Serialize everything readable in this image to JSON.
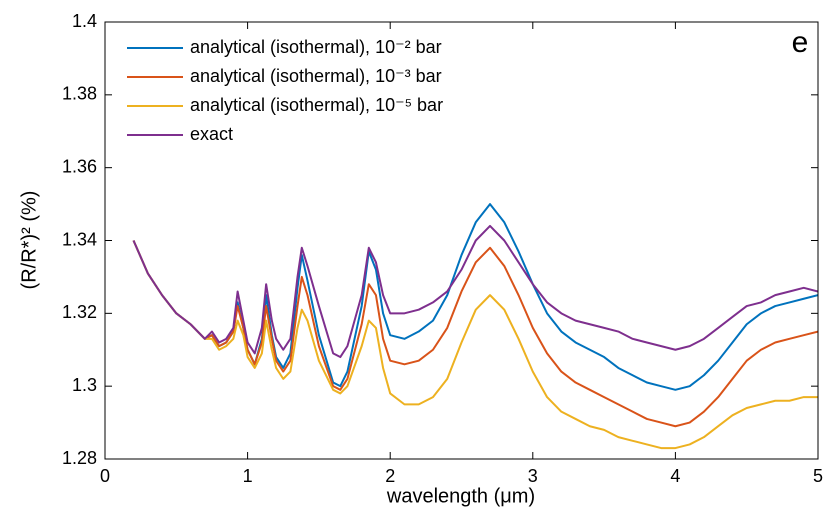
{
  "chart_data": {
    "type": "line",
    "x_label": "wavelength (μm)",
    "y_label": "(R/R*)² (%)",
    "annotation": "e",
    "xlim": [
      0,
      5
    ],
    "xticks": [
      0,
      1,
      2,
      3,
      4,
      5
    ],
    "ylim": [
      1.28,
      1.4
    ],
    "yticks": [
      1.28,
      1.3,
      1.32,
      1.34,
      1.36,
      1.38,
      1.4
    ],
    "legend": "upper left",
    "grid": false,
    "x": [
      0.2,
      0.3,
      0.4,
      0.5,
      0.6,
      0.7,
      0.75,
      0.8,
      0.85,
      0.9,
      0.93,
      0.97,
      1.0,
      1.05,
      1.1,
      1.13,
      1.17,
      1.2,
      1.25,
      1.3,
      1.35,
      1.38,
      1.42,
      1.5,
      1.6,
      1.65,
      1.7,
      1.8,
      1.85,
      1.9,
      1.95,
      2.0,
      2.1,
      2.2,
      2.3,
      2.4,
      2.5,
      2.6,
      2.7,
      2.8,
      2.9,
      3.0,
      3.1,
      3.2,
      3.3,
      3.4,
      3.5,
      3.6,
      3.7,
      3.8,
      3.9,
      4.0,
      4.1,
      4.2,
      4.3,
      4.4,
      4.5,
      4.6,
      4.7,
      4.8,
      4.9,
      5.0
    ],
    "series": [
      {
        "name": "analytical (isothermal), 10⁻² bar",
        "color": "#0072bd",
        "values": [
          1.34,
          1.331,
          1.325,
          1.32,
          1.317,
          1.313,
          1.314,
          1.311,
          1.312,
          1.315,
          1.323,
          1.316,
          1.31,
          1.306,
          1.313,
          1.325,
          1.314,
          1.308,
          1.305,
          1.309,
          1.327,
          1.336,
          1.329,
          1.314,
          1.301,
          1.3,
          1.304,
          1.322,
          1.337,
          1.332,
          1.32,
          1.314,
          1.313,
          1.315,
          1.318,
          1.325,
          1.336,
          1.345,
          1.35,
          1.345,
          1.337,
          1.328,
          1.32,
          1.315,
          1.312,
          1.31,
          1.308,
          1.305,
          1.303,
          1.301,
          1.3,
          1.299,
          1.3,
          1.303,
          1.307,
          1.312,
          1.317,
          1.32,
          1.322,
          1.323,
          1.324,
          1.325
        ]
      },
      {
        "name": "analytical (isothermal), 10⁻³ bar",
        "color": "#d95319",
        "values": [
          1.34,
          1.331,
          1.325,
          1.32,
          1.317,
          1.313,
          1.314,
          1.311,
          1.312,
          1.315,
          1.322,
          1.316,
          1.31,
          1.306,
          1.312,
          1.322,
          1.313,
          1.307,
          1.304,
          1.307,
          1.322,
          1.33,
          1.325,
          1.311,
          1.3,
          1.299,
          1.302,
          1.317,
          1.328,
          1.325,
          1.313,
          1.307,
          1.306,
          1.307,
          1.31,
          1.316,
          1.326,
          1.334,
          1.338,
          1.333,
          1.325,
          1.316,
          1.309,
          1.304,
          1.301,
          1.299,
          1.297,
          1.295,
          1.293,
          1.291,
          1.29,
          1.289,
          1.29,
          1.293,
          1.297,
          1.302,
          1.307,
          1.31,
          1.312,
          1.313,
          1.314,
          1.315
        ]
      },
      {
        "name": "analytical (isothermal), 10⁻⁵ bar",
        "color": "#edb120",
        "values": [
          1.34,
          1.331,
          1.325,
          1.32,
          1.317,
          1.313,
          1.313,
          1.31,
          1.311,
          1.313,
          1.318,
          1.314,
          1.308,
          1.305,
          1.309,
          1.318,
          1.31,
          1.305,
          1.302,
          1.304,
          1.316,
          1.321,
          1.318,
          1.307,
          1.299,
          1.298,
          1.3,
          1.311,
          1.318,
          1.316,
          1.305,
          1.298,
          1.295,
          1.295,
          1.297,
          1.302,
          1.312,
          1.321,
          1.325,
          1.321,
          1.313,
          1.304,
          1.297,
          1.293,
          1.291,
          1.289,
          1.288,
          1.286,
          1.285,
          1.284,
          1.283,
          1.283,
          1.284,
          1.286,
          1.289,
          1.292,
          1.294,
          1.295,
          1.296,
          1.296,
          1.297,
          1.297
        ]
      },
      {
        "name": "exact",
        "color": "#7e2f8e",
        "values": [
          1.34,
          1.331,
          1.325,
          1.32,
          1.317,
          1.313,
          1.315,
          1.312,
          1.313,
          1.316,
          1.326,
          1.318,
          1.312,
          1.309,
          1.316,
          1.328,
          1.318,
          1.313,
          1.31,
          1.313,
          1.33,
          1.338,
          1.333,
          1.322,
          1.309,
          1.308,
          1.311,
          1.325,
          1.338,
          1.334,
          1.325,
          1.32,
          1.32,
          1.321,
          1.323,
          1.326,
          1.332,
          1.34,
          1.344,
          1.34,
          1.334,
          1.328,
          1.323,
          1.32,
          1.318,
          1.317,
          1.316,
          1.315,
          1.313,
          1.312,
          1.311,
          1.31,
          1.311,
          1.313,
          1.316,
          1.319,
          1.322,
          1.323,
          1.325,
          1.326,
          1.327,
          1.326
        ]
      }
    ]
  }
}
